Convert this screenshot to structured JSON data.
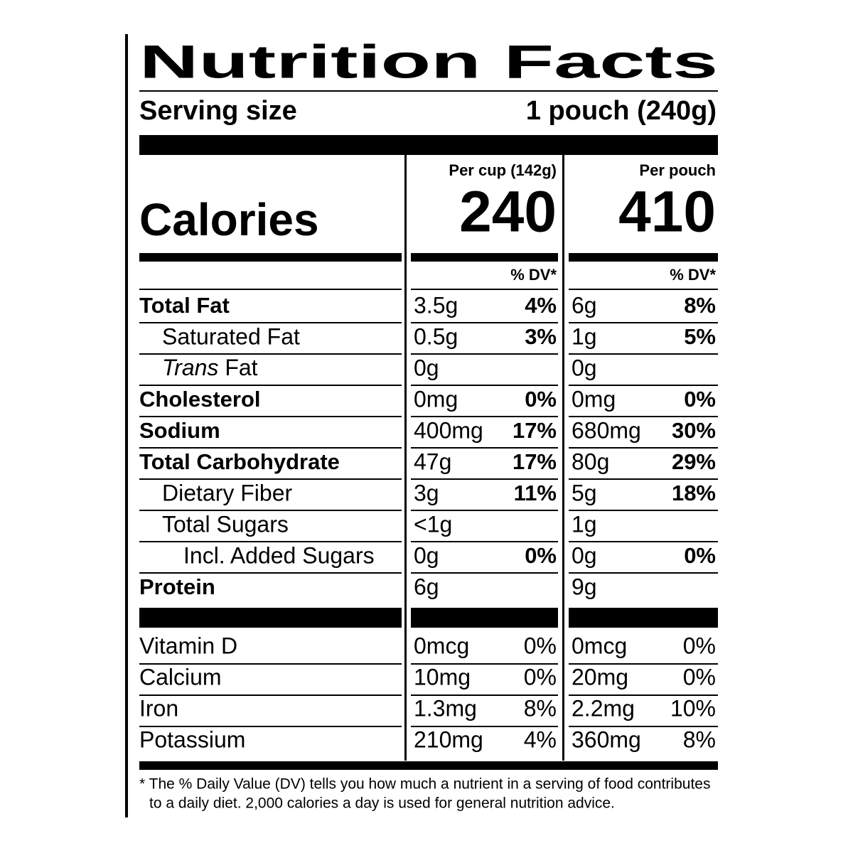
{
  "title": "Nutrition Facts",
  "serving": {
    "label": "Serving size",
    "value": "1 pouch (240g)"
  },
  "calories": {
    "label": "Calories",
    "columns": [
      {
        "header": "Per cup (142g)",
        "value": "240",
        "dv_header": "% DV*"
      },
      {
        "header": "Per pouch",
        "value": "410",
        "dv_header": "% DV*"
      }
    ]
  },
  "nutrients": [
    {
      "name": "Total Fat",
      "per_cup": {
        "amount": "3.5g",
        "dv": "4%"
      },
      "per_pouch": {
        "amount": "6g",
        "dv": "8%"
      }
    },
    {
      "name": "Saturated Fat",
      "per_cup": {
        "amount": "0.5g",
        "dv": "3%"
      },
      "per_pouch": {
        "amount": "1g",
        "dv": "5%"
      }
    },
    {
      "name": "Trans Fat",
      "per_cup": {
        "amount": "0g"
      },
      "per_pouch": {
        "amount": "0g"
      }
    },
    {
      "name": "Cholesterol",
      "per_cup": {
        "amount": "0mg",
        "dv": "0%"
      },
      "per_pouch": {
        "amount": "0mg",
        "dv": "0%"
      }
    },
    {
      "name": "Sodium",
      "per_cup": {
        "amount": "400mg",
        "dv": "17%"
      },
      "per_pouch": {
        "amount": "680mg",
        "dv": "30%"
      }
    },
    {
      "name": "Total Carbohydrate",
      "per_cup": {
        "amount": "47g",
        "dv": "17%"
      },
      "per_pouch": {
        "amount": "80g",
        "dv": "29%"
      }
    },
    {
      "name": "Dietary Fiber",
      "per_cup": {
        "amount": "3g",
        "dv": "11%"
      },
      "per_pouch": {
        "amount": "5g",
        "dv": "18%"
      }
    },
    {
      "name": "Total Sugars",
      "per_cup": {
        "amount": "<1g"
      },
      "per_pouch": {
        "amount": "1g"
      }
    },
    {
      "name": "Incl. Added Sugars",
      "per_cup": {
        "amount": "0g",
        "dv": "0%"
      },
      "per_pouch": {
        "amount": "0g",
        "dv": "0%"
      }
    },
    {
      "name": "Protein",
      "per_cup": {
        "amount": "6g"
      },
      "per_pouch": {
        "amount": "9g"
      }
    }
  ],
  "vitamins": [
    {
      "name": "Vitamin D",
      "per_cup": {
        "amount": "0mcg",
        "dv": "0%"
      },
      "per_pouch": {
        "amount": "0mcg",
        "dv": "0%"
      }
    },
    {
      "name": "Calcium",
      "per_cup": {
        "amount": "10mg",
        "dv": "0%"
      },
      "per_pouch": {
        "amount": "20mg",
        "dv": "0%"
      }
    },
    {
      "name": "Iron",
      "per_cup": {
        "amount": "1.3mg",
        "dv": "8%"
      },
      "per_pouch": {
        "amount": "2.2mg",
        "dv": "10%"
      }
    },
    {
      "name": "Potassium",
      "per_cup": {
        "amount": "210mg",
        "dv": "4%"
      },
      "per_pouch": {
        "amount": "360mg",
        "dv": "8%"
      }
    }
  ],
  "footnote": [
    "* The % Daily Value (DV) tells you how much a nutrient in a serving of food contributes",
    "to a daily diet. 2,000 calories a day is used for general nutrition advice."
  ]
}
